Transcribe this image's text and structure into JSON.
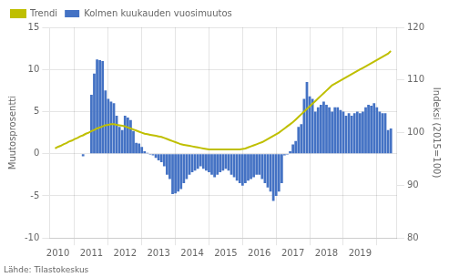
{
  "chart_data": {
    "type": "bar",
    "ylabel": "Muutosprosentti",
    "y2label": "Indeksi (2015=100)",
    "annotation": "Lähde: Tilastokeskus",
    "xlim": [
      2009.75,
      2020.1
    ],
    "xticks": [
      2010,
      2011,
      2012,
      2013,
      2014,
      2015,
      2016,
      2017,
      2018,
      2019
    ],
    "ylim": [
      -10,
      15
    ],
    "yticks": [
      -10,
      -5,
      0,
      5,
      10,
      15
    ],
    "y2lim": [
      80,
      120
    ],
    "y2ticks": [
      80,
      90,
      100,
      110,
      120
    ],
    "grid": true,
    "legend": "upper left",
    "series": [
      {
        "name": "Kolmen kuukauden vuosimuutos",
        "type": "bar",
        "color": "#4472C4",
        "x": [
          2010.75,
          2011.0,
          2011.083,
          2011.167,
          2011.25,
          2011.333,
          2011.417,
          2011.5,
          2011.583,
          2011.667,
          2011.75,
          2011.833,
          2011.917,
          2012.0,
          2012.083,
          2012.167,
          2012.25,
          2012.333,
          2012.417,
          2012.5,
          2012.583,
          2012.667,
          2012.75,
          2012.833,
          2012.917,
          2013.0,
          2013.083,
          2013.167,
          2013.25,
          2013.333,
          2013.417,
          2013.5,
          2013.583,
          2013.667,
          2013.75,
          2013.833,
          2013.917,
          2014.0,
          2014.083,
          2014.167,
          2014.25,
          2014.333,
          2014.417,
          2014.5,
          2014.583,
          2014.667,
          2014.75,
          2014.833,
          2014.917,
          2015.0,
          2015.083,
          2015.167,
          2015.25,
          2015.333,
          2015.417,
          2015.5,
          2015.583,
          2015.667,
          2015.75,
          2015.833,
          2015.917,
          2016.0,
          2016.083,
          2016.167,
          2016.25,
          2016.333,
          2016.417,
          2016.5,
          2016.583,
          2016.667,
          2016.75,
          2016.833,
          2016.917,
          2017.0,
          2017.083,
          2017.167,
          2017.25,
          2017.333,
          2017.417,
          2017.5,
          2017.583,
          2017.667,
          2017.75,
          2017.833,
          2017.917,
          2018.0,
          2018.083,
          2018.167,
          2018.25,
          2018.333,
          2018.417,
          2018.5,
          2018.583,
          2018.667,
          2018.75,
          2018.833,
          2018.917,
          2019.0,
          2019.083,
          2019.167,
          2019.25,
          2019.333,
          2019.417,
          2019.5,
          2019.583,
          2019.667,
          2019.75,
          2019.833,
          2019.917
        ],
        "values": [
          -0.3,
          7.0,
          9.5,
          11.2,
          11.1,
          11.0,
          7.5,
          6.5,
          6.2,
          6.0,
          4.5,
          3.2,
          2.8,
          4.5,
          4.3,
          4.0,
          2.7,
          1.3,
          1.2,
          0.8,
          0.3,
          0.1,
          -0.1,
          -0.2,
          -0.5,
          -0.8,
          -1.0,
          -1.5,
          -2.5,
          -3.0,
          -4.8,
          -4.7,
          -4.5,
          -4.2,
          -3.5,
          -3.0,
          -2.5,
          -2.2,
          -2.0,
          -1.8,
          -1.5,
          -1.8,
          -2.0,
          -2.2,
          -2.5,
          -2.8,
          -2.5,
          -2.2,
          -2.0,
          -1.8,
          -2.0,
          -2.5,
          -2.8,
          -3.2,
          -3.5,
          -3.8,
          -3.5,
          -3.2,
          -3.0,
          -2.8,
          -2.5,
          -2.5,
          -3.0,
          -3.5,
          -4.0,
          -4.5,
          -5.6,
          -5.0,
          -4.5,
          -3.5,
          -0.2,
          -0.1,
          0.3,
          1.1,
          1.5,
          3.2,
          3.5,
          6.5,
          8.5,
          6.8,
          6.5,
          5.0,
          5.5,
          5.8,
          6.2,
          5.8,
          5.5,
          5.0,
          5.5,
          5.5,
          5.2,
          5.0,
          4.5,
          4.8,
          4.5,
          4.8,
          5.0,
          4.8,
          5.0,
          5.5,
          5.8,
          5.7,
          6.0,
          5.5,
          5.0,
          4.8,
          4.8,
          2.8,
          3.0
        ]
      },
      {
        "name": "Trendi",
        "type": "line",
        "axis": "y2",
        "color": "#BFBF00",
        "x": [
          2009.917,
          2010.0,
          2010.083,
          2010.167,
          2010.25,
          2010.333,
          2010.417,
          2010.5,
          2010.583,
          2010.667,
          2010.75,
          2010.833,
          2010.917,
          2011.0,
          2011.083,
          2011.167,
          2011.25,
          2011.333,
          2011.417,
          2011.5,
          2011.583,
          2011.667,
          2011.75,
          2011.833,
          2011.917,
          2012.0,
          2012.083,
          2012.167,
          2012.25,
          2012.333,
          2012.417,
          2012.5,
          2012.583,
          2012.667,
          2012.75,
          2012.833,
          2012.917,
          2013.0,
          2013.083,
          2013.167,
          2013.25,
          2013.333,
          2013.417,
          2013.5,
          2013.583,
          2013.667,
          2013.75,
          2013.833,
          2013.917,
          2014.0,
          2014.083,
          2014.167,
          2014.25,
          2014.333,
          2014.417,
          2014.5,
          2014.583,
          2014.667,
          2014.75,
          2014.833,
          2014.917,
          2015.0,
          2015.083,
          2015.167,
          2015.25,
          2015.333,
          2015.417,
          2015.5,
          2015.583,
          2015.667,
          2015.75,
          2015.833,
          2015.917,
          2016.0,
          2016.083,
          2016.167,
          2016.25,
          2016.333,
          2016.417,
          2016.5,
          2016.583,
          2016.667,
          2016.75,
          2016.833,
          2016.917,
          2017.0,
          2017.083,
          2017.167,
          2017.25,
          2017.333,
          2017.417,
          2017.5,
          2017.583,
          2017.667,
          2017.75,
          2017.833,
          2017.917,
          2018.0,
          2018.083,
          2018.167,
          2018.25,
          2018.333,
          2018.417,
          2018.5,
          2018.583,
          2018.667,
          2018.75,
          2018.833,
          2018.917,
          2019.0,
          2019.083,
          2019.167,
          2019.25,
          2019.333,
          2019.417,
          2019.5,
          2019.583,
          2019.667,
          2019.75,
          2019.833,
          2019.917
        ],
        "values": [
          97.0,
          97.3,
          97.5,
          97.8,
          98.0,
          98.3,
          98.5,
          98.8,
          99.0,
          99.3,
          99.5,
          99.8,
          100.0,
          100.3,
          100.5,
          100.8,
          101.0,
          101.2,
          101.4,
          101.5,
          101.6,
          101.6,
          101.5,
          101.4,
          101.3,
          101.2,
          101.0,
          100.8,
          100.6,
          100.4,
          100.2,
          100.0,
          99.8,
          99.7,
          99.6,
          99.5,
          99.4,
          99.3,
          99.2,
          99.0,
          98.8,
          98.6,
          98.4,
          98.2,
          98.0,
          97.8,
          97.7,
          97.6,
          97.5,
          97.4,
          97.3,
          97.2,
          97.1,
          97.0,
          96.9,
          96.8,
          96.8,
          96.8,
          96.8,
          96.8,
          96.8,
          96.8,
          96.8,
          96.8,
          96.8,
          96.8,
          96.8,
          96.9,
          97.0,
          97.2,
          97.4,
          97.6,
          97.8,
          98.0,
          98.2,
          98.5,
          98.8,
          99.1,
          99.4,
          99.7,
          100.0,
          100.4,
          100.8,
          101.2,
          101.6,
          102.0,
          102.5,
          103.0,
          103.5,
          104.0,
          104.5,
          105.0,
          105.5,
          106.0,
          106.5,
          107.0,
          107.5,
          108.0,
          108.5,
          109.0,
          109.3,
          109.6,
          109.9,
          110.2,
          110.5,
          110.8,
          111.1,
          111.4,
          111.7,
          112.0,
          112.3,
          112.6,
          112.9,
          113.2,
          113.5,
          113.8,
          114.1,
          114.4,
          114.7,
          115.0,
          115.5
        ]
      }
    ]
  }
}
